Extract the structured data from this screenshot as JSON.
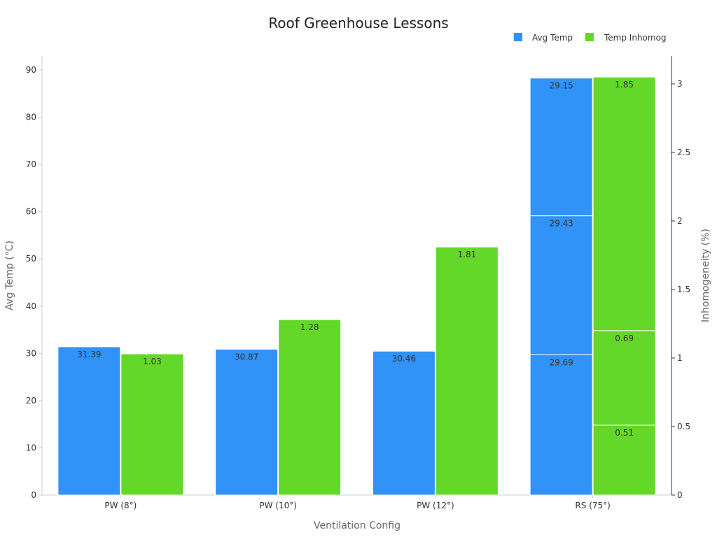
{
  "chart_data": {
    "type": "bar",
    "stacked": true,
    "title": "Roof Greenhouse Lessons",
    "xlabel": "Ventilation Config",
    "ylabel": "Avg Temp (°C)",
    "y2label": "Inhomogeneity (%)",
    "categories": [
      "PW (8°)",
      "PW (10°)",
      "PW (12°)",
      "RS (75°)"
    ],
    "ylim": [
      0,
      90
    ],
    "y2lim": [
      0,
      3
    ],
    "yticks": [
      0,
      10,
      20,
      30,
      40,
      50,
      60,
      70,
      80,
      90
    ],
    "y2ticks": [
      0,
      0.5,
      1,
      1.5,
      2,
      2.5,
      3
    ],
    "legend_position": "top-right",
    "grid": false,
    "series": [
      {
        "name": "Avg Temp",
        "axis": "left",
        "color": "#3192f7",
        "stacks": [
          [
            31.39
          ],
          [
            30.87
          ],
          [
            30.46
          ],
          [
            29.69,
            29.43,
            29.15
          ]
        ]
      },
      {
        "name": "Temp Inhomog",
        "axis": "right",
        "color": "#64d828",
        "stacks": [
          [
            1.03
          ],
          [
            1.28
          ],
          [
            1.81
          ],
          [
            0.51,
            0.69,
            1.85
          ]
        ]
      }
    ]
  }
}
